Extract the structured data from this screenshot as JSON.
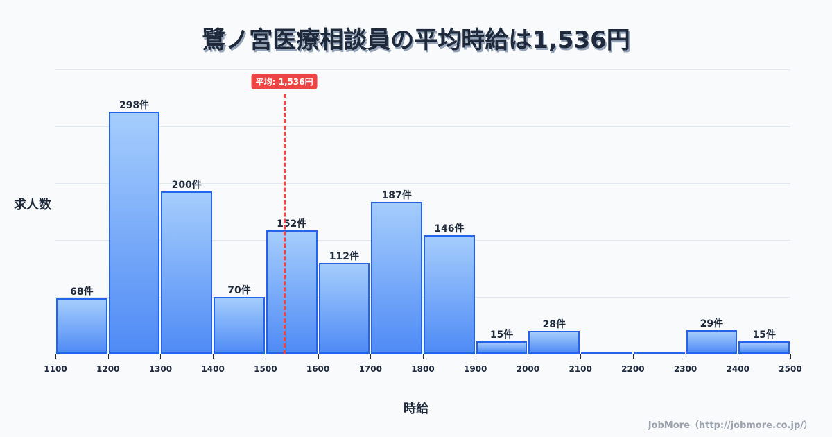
{
  "title": "鷺ノ宮医療相談員の平均時給は1,536円",
  "y_axis_label": "求人数",
  "x_axis_label": "時給",
  "credit": "JobMore（http://jobmore.co.jp/）",
  "average_badge": "平均: 1,536円",
  "colors": {
    "bar_border": "#2563eb",
    "bar_top": "#a5cdfc",
    "bar_bottom": "#4f8bf5",
    "average": "#ef4444",
    "text": "#1e293b"
  },
  "chart_data": {
    "type": "bar",
    "title": "鷺ノ宮医療相談員の平均時給は1,536円",
    "xlabel": "時給",
    "ylabel": "求人数",
    "bins": [
      [
        1100,
        1200
      ],
      [
        1200,
        1300
      ],
      [
        1300,
        1400
      ],
      [
        1400,
        1500
      ],
      [
        1500,
        1600
      ],
      [
        1600,
        1700
      ],
      [
        1700,
        1800
      ],
      [
        1800,
        1900
      ],
      [
        1900,
        2000
      ],
      [
        2000,
        2100
      ],
      [
        2100,
        2200
      ],
      [
        2200,
        2300
      ],
      [
        2300,
        2400
      ],
      [
        2400,
        2500
      ]
    ],
    "categories": [
      "1100-1200",
      "1200-1300",
      "1300-1400",
      "1400-1500",
      "1500-1600",
      "1600-1700",
      "1700-1800",
      "1800-1900",
      "1900-2000",
      "2000-2100",
      "2100-2200",
      "2200-2300",
      "2300-2400",
      "2400-2500"
    ],
    "values": [
      68,
      298,
      200,
      70,
      152,
      112,
      187,
      146,
      15,
      28,
      0,
      0,
      29,
      15
    ],
    "labels": [
      "68件",
      "298件",
      "200件",
      "70件",
      "152件",
      "112件",
      "187件",
      "146件",
      "15件",
      "28件",
      "",
      "",
      "29件",
      "15件"
    ],
    "x_ticks": [
      "1100",
      "1200",
      "1300",
      "1400",
      "1500",
      "1600",
      "1700",
      "1800",
      "1900",
      "2000",
      "2100",
      "2200",
      "2300",
      "2400",
      "2500"
    ],
    "xlim": [
      1100,
      2500
    ],
    "ylim": [
      0,
      350
    ],
    "grid": true,
    "average": 1536,
    "average_label": "平均: 1,536円"
  }
}
